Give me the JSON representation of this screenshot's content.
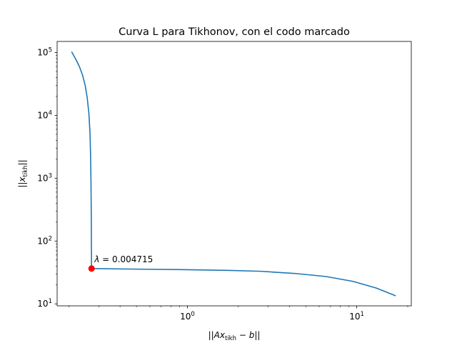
{
  "chart_data": {
    "type": "line",
    "title": "Curva L para Tikhonov, con el codo marcado",
    "xlabel": "||Ax_tikh − b||",
    "ylabel": "||x_tikh||",
    "xscale": "log",
    "yscale": "log",
    "xlim": [
      0.17,
      21
    ],
    "ylim": [
      9.3,
      150000
    ],
    "grid": false,
    "x_ticks": [
      {
        "value": 1,
        "base": "10",
        "exp": "0"
      },
      {
        "value": 10,
        "base": "10",
        "exp": "1"
      }
    ],
    "y_ticks": [
      {
        "value": 10,
        "base": "10",
        "exp": "1"
      },
      {
        "value": 100,
        "base": "10",
        "exp": "2"
      },
      {
        "value": 1000,
        "base": "10",
        "exp": "3"
      },
      {
        "value": 10000,
        "base": "10",
        "exp": "4"
      },
      {
        "value": 100000,
        "base": "10",
        "exp": "5"
      }
    ],
    "series": [
      {
        "color": "#1f77b4",
        "points": [
          [
            0.207,
            103000
          ],
          [
            0.218,
            80000
          ],
          [
            0.23,
            60000
          ],
          [
            0.24,
            44000
          ],
          [
            0.249,
            30000
          ],
          [
            0.256,
            19000
          ],
          [
            0.262,
            10500
          ],
          [
            0.266,
            5000
          ],
          [
            0.268,
            2200
          ],
          [
            0.2695,
            800
          ],
          [
            0.2705,
            250
          ],
          [
            0.271,
            80
          ],
          [
            0.2715,
            36.5
          ],
          [
            0.5,
            35.7
          ],
          [
            1.0,
            35.0
          ],
          [
            1.7,
            34.2
          ],
          [
            2.7,
            33.0
          ],
          [
            4.3,
            30.5
          ],
          [
            6.6,
            27.2
          ],
          [
            9.5,
            22.8
          ],
          [
            13.0,
            17.9
          ],
          [
            17.0,
            13.4
          ]
        ]
      }
    ],
    "marker": {
      "x": 0.2715,
      "y": 36.5,
      "color": "#ff0000",
      "label_prefix": "λ = ",
      "label_value": "0.004715"
    }
  }
}
